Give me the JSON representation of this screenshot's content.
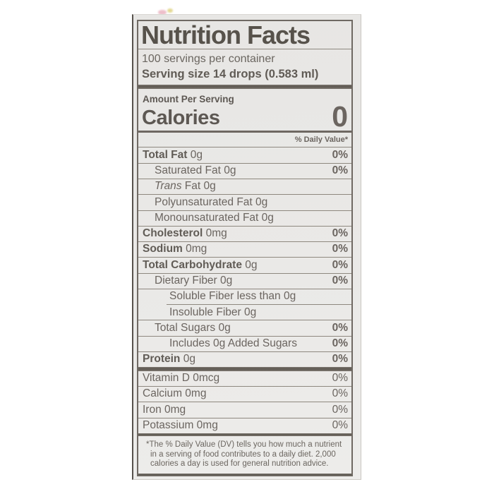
{
  "colors": {
    "label_background": "#e8e7e5",
    "ink": "#5d5853",
    "hairline": "#8e887f",
    "thick_bar": "#5d5851"
  },
  "label": {
    "title": "Nutrition Facts",
    "servings_per_container": "100 servings per container",
    "serving_size": "Serving size 14 drops (0.583 ml)",
    "amount_per_serving": "Amount Per Serving",
    "calories_label": "Calories",
    "calories_value": "0",
    "daily_value_header": "% Daily Value*",
    "rows": [
      {
        "strong": "Total Fat",
        "em": "",
        "rest": " 0g",
        "dv": "0%"
      },
      {
        "strong": "",
        "em": "",
        "rest": "Saturated Fat 0g",
        "dv": "0%"
      },
      {
        "strong": "",
        "em": "Trans",
        "rest": " Fat 0g",
        "dv": ""
      },
      {
        "strong": "",
        "em": "",
        "rest": "Polyunsaturated Fat 0g",
        "dv": ""
      },
      {
        "strong": "",
        "em": "",
        "rest": "Monounsaturated Fat 0g",
        "dv": ""
      },
      {
        "strong": "Cholesterol",
        "em": "",
        "rest": " 0mg",
        "dv": "0%"
      },
      {
        "strong": "Sodium",
        "em": "",
        "rest": " 0mg",
        "dv": "0%"
      },
      {
        "strong": "Total Carbohydrate",
        "em": "",
        "rest": " 0g",
        "dv": "0%"
      },
      {
        "strong": "",
        "em": "",
        "rest": "Dietary Fiber 0g",
        "dv": "0%"
      },
      {
        "strong": "",
        "em": "",
        "rest": "Soluble Fiber less than 0g",
        "dv": ""
      },
      {
        "strong": "",
        "em": "",
        "rest": "Insoluble Fiber 0g",
        "dv": ""
      },
      {
        "strong": "",
        "em": "",
        "rest": "Total Sugars 0g",
        "dv": "0%"
      },
      {
        "strong": "",
        "em": "",
        "rest": "Includes 0g Added Sugars",
        "dv": "0%"
      },
      {
        "strong": "Protein",
        "em": "",
        "rest": " 0g",
        "dv": "0%"
      }
    ],
    "vitamin_rows": [
      {
        "rest": "Vitamin D 0mcg",
        "dv": "0%"
      },
      {
        "rest": "Calcium 0mg",
        "dv": "0%"
      },
      {
        "rest": "Iron 0mg",
        "dv": "0%"
      },
      {
        "rest": "Potassium 0mg",
        "dv": "0%"
      }
    ],
    "footnote": "*The % Daily Value (DV) tells you how much a nutrient in a serving of food contributes to a daily diet. 2,000 calories a day is used for general nutrition advice."
  }
}
